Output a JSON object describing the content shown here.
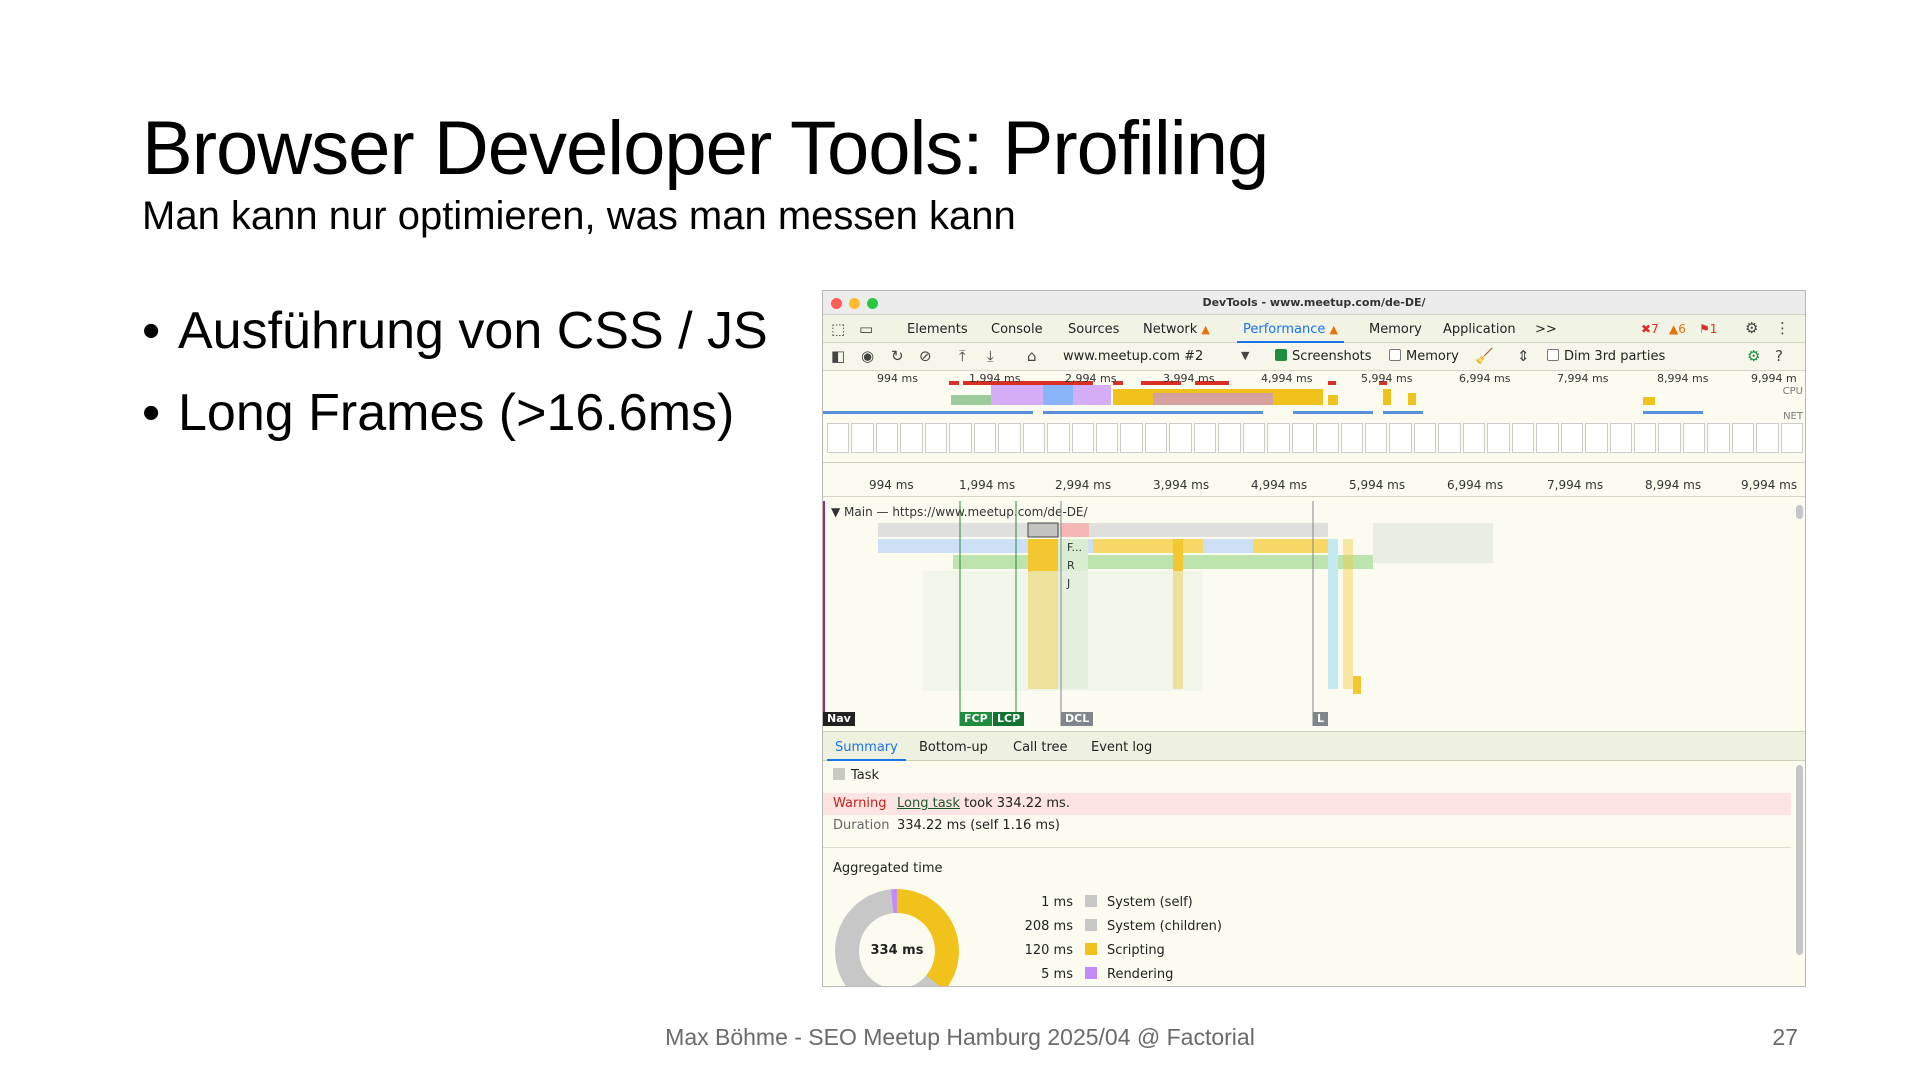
{
  "slide": {
    "title": "Browser Developer Tools: Profiling",
    "subtitle": "Man kann nur optimieren, was man messen kann",
    "bullets": [
      "Ausführung von CSS / JS",
      "Long Frames (>16.6ms)"
    ],
    "footer": "Max Böhme - SEO Meetup Hamburg 2025/04 @ Factorial",
    "page_number": "27"
  },
  "devtools": {
    "window_title": "DevTools - www.meetup.com/de-DE/",
    "tabs": [
      "Elements",
      "Console",
      "Sources",
      "Network",
      "Performance",
      "Memory",
      "Application"
    ],
    "active_tab": "Performance",
    "more_tabs": ">>",
    "badges": {
      "errors": "7",
      "warnings": "6",
      "issues": "1"
    },
    "toolbar": {
      "recording_select": "www.meetup.com #2",
      "screenshots_label": "Screenshots",
      "screenshots_checked": true,
      "memory_label": "Memory",
      "memory_checked": false,
      "dim_label": "Dim 3rd parties",
      "dim_checked": false
    },
    "overview_ticks": [
      "994 ms",
      "1,994 ms",
      "2,994 ms",
      "3,994 ms",
      "4,994 ms",
      "5,994 ms",
      "6,994 ms",
      "7,994 ms",
      "8,994 ms",
      "9,994 m"
    ],
    "overview_labels": {
      "cpu": "CPU",
      "net": "NET"
    },
    "ruler_ticks": [
      "994 ms",
      "1,994 ms",
      "2,994 ms",
      "3,994 ms",
      "4,994 ms",
      "5,994 ms",
      "6,994 ms",
      "7,994 ms",
      "8,994 ms",
      "9,994 ms"
    ],
    "main_track_label": "Main — https://www.meetup.com/de-DE/",
    "flame_letters": [
      "F...",
      "R",
      "J"
    ],
    "markers": {
      "nav": "Nav",
      "fcp": "FCP",
      "lcp": "LCP",
      "dcl": "DCL",
      "l": "L"
    },
    "bottom_tabs": [
      "Summary",
      "Bottom-up",
      "Call tree",
      "Event log"
    ],
    "active_bottom_tab": "Summary",
    "summary": {
      "item": "Task",
      "warning_key": "Warning",
      "warning_link": "Long task",
      "warning_text": "took 334.22 ms.",
      "duration_key": "Duration",
      "duration_value": "334.22 ms (self 1.16 ms)",
      "aggregated_title": "Aggregated time",
      "donut_total": "334 ms",
      "aggregated": [
        {
          "value": "1 ms",
          "label": "System (self)",
          "color": "#c7c7c7"
        },
        {
          "value": "208 ms",
          "label": "System (children)",
          "color": "#c7c7c7"
        },
        {
          "value": "120 ms",
          "label": "Scripting",
          "color": "#f2c21c"
        },
        {
          "value": "5 ms",
          "label": "Rendering",
          "color": "#c58af9"
        }
      ]
    }
  }
}
